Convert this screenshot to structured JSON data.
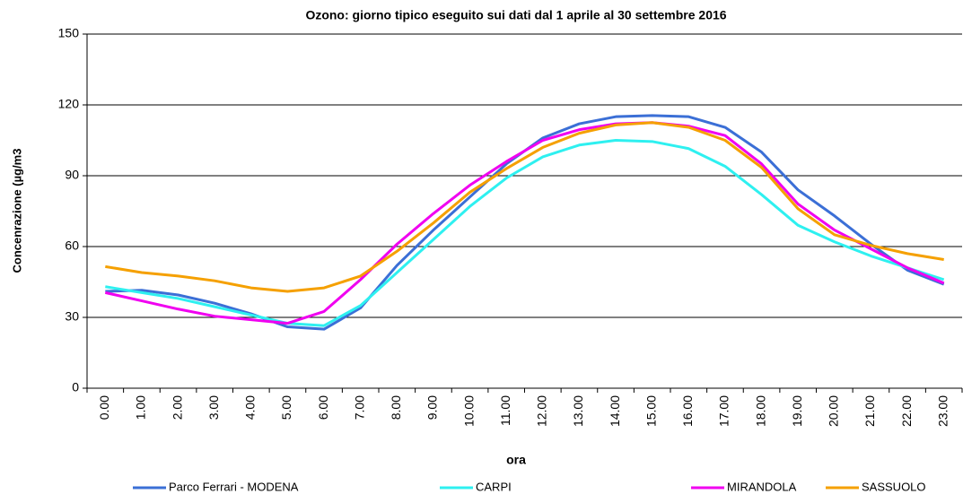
{
  "chart_data": {
    "type": "line",
    "title": "Ozono: giorno tipico eseguito sui dati dal 1 aprile al 30 settembre 2016",
    "x_label": "ora",
    "y_label": "Concenrazione (µg/m3",
    "categories": [
      "0.00",
      "1.00",
      "2.00",
      "3.00",
      "4.00",
      "5.00",
      "6.00",
      "7.00",
      "8.00",
      "9.00",
      "10.00",
      "11.00",
      "12.00",
      "13.00",
      "14.00",
      "15.00",
      "16.00",
      "17.00",
      "18.00",
      "19.00",
      "20.00",
      "21.00",
      "22.00",
      "23.00"
    ],
    "ylim": [
      0,
      150
    ],
    "yticks": [
      0,
      30,
      60,
      90,
      120,
      150
    ],
    "grid": true,
    "legend": "bottom",
    "series": [
      {
        "name": "Parco Ferrari - MODENA",
        "color": "#3b6fd6",
        "values": [
          41,
          41.5,
          39.5,
          36,
          31.5,
          26,
          25,
          34,
          52,
          67,
          81,
          95,
          106,
          112,
          115,
          115.5,
          115,
          110.5,
          100,
          84,
          73,
          61,
          50,
          44
        ]
      },
      {
        "name": "CARPI",
        "color": "#2ef0f0",
        "values": [
          43,
          40.5,
          38,
          34.5,
          31,
          27.5,
          26.5,
          35,
          49,
          63,
          77,
          89,
          98,
          103,
          105,
          104.5,
          101.5,
          94,
          82,
          69,
          62,
          56,
          51,
          46
        ]
      },
      {
        "name": "MIRANDOLA",
        "color": "#f000f0",
        "values": [
          40.5,
          37,
          33.5,
          30.5,
          29,
          27.5,
          32.5,
          46,
          61,
          74,
          86,
          96,
          105,
          109.5,
          112,
          112.5,
          111,
          107,
          95,
          78,
          67,
          59,
          51,
          44.5
        ]
      },
      {
        "name": "SASSUOLO",
        "color": "#f5a000",
        "values": [
          51.5,
          49,
          47.5,
          45.5,
          42.5,
          41,
          42.5,
          47.5,
          58,
          70,
          83,
          93,
          102,
          108,
          111.5,
          112.5,
          110.5,
          105,
          93.5,
          76,
          65,
          60.5,
          57,
          54.5
        ]
      }
    ]
  }
}
